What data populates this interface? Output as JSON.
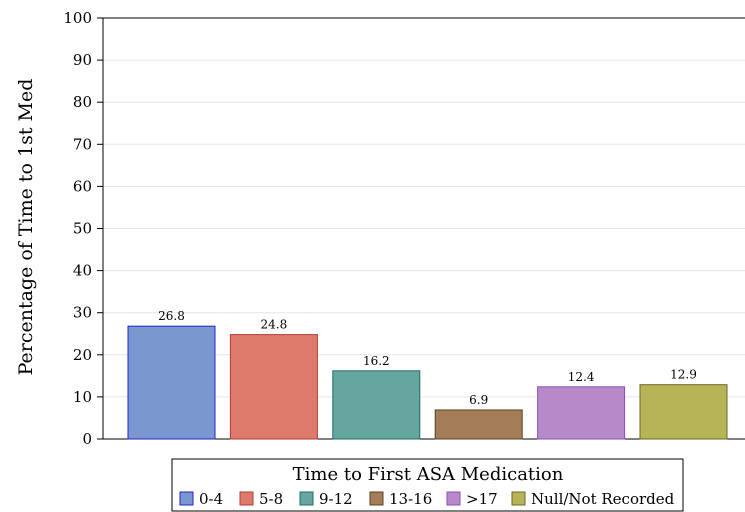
{
  "chart_data": {
    "type": "bar",
    "categories": [
      "0-4",
      "5-8",
      "9-12",
      "13-16",
      ">17",
      "Null/Not Recorded"
    ],
    "values": [
      26.8,
      24.8,
      16.2,
      6.9,
      12.4,
      12.9
    ],
    "data_labels": [
      "26.8",
      "24.8",
      "16.2",
      "6.9",
      "12.4",
      "12.9"
    ],
    "ylabel": "Percentage of Time to 1st Med",
    "xlabel": "",
    "ylim": [
      0,
      100
    ],
    "yticks": [
      "0",
      "10",
      "20",
      "30",
      "40",
      "50",
      "60",
      "70",
      "80",
      "90",
      "100"
    ],
    "grid": true,
    "legend": {
      "title": "Time to First ASA Medication",
      "placement": "bottom-center",
      "entries": [
        "0-4",
        "5-8",
        "9-12",
        "13-16",
        ">17",
        "Null/Not Recorded"
      ]
    },
    "colors": {
      "fill": [
        "#7a97d0",
        "#de7a6b",
        "#63a79f",
        "#a37d58",
        "#b68ac9",
        "#b6b456"
      ],
      "stroke": [
        "#2525c8",
        "#b23d33",
        "#226d66",
        "#604020",
        "#8f4cc1",
        "#6b6a24"
      ]
    }
  }
}
